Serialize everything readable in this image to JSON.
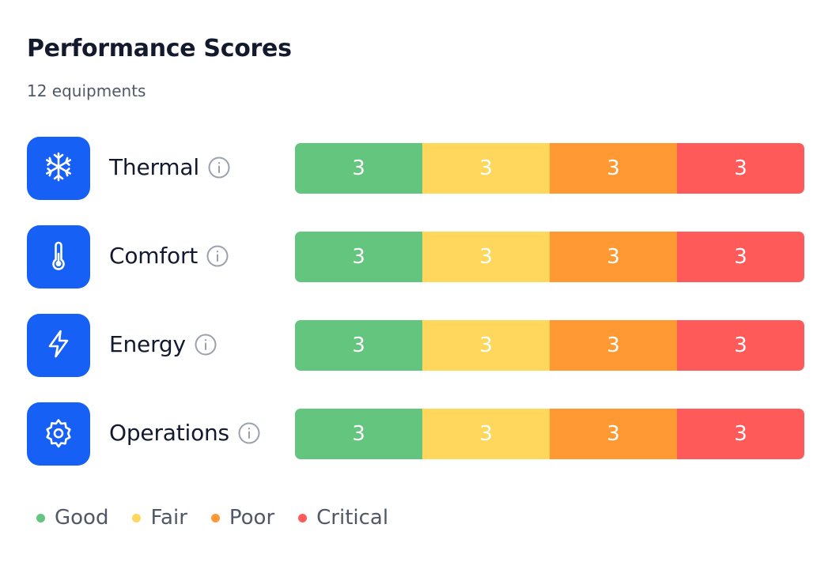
{
  "header": {
    "title": "Performance Scores",
    "subtitle": "12 equipments"
  },
  "colors": {
    "accent": "#1660f5",
    "good": "#63c57e",
    "fair": "#ffd75c",
    "poor": "#ff9934",
    "critical": "#ff5a5a"
  },
  "rows": [
    {
      "name": "Thermal",
      "icon": "snowflake-icon",
      "scores": {
        "good": "3",
        "fair": "3",
        "poor": "3",
        "critical": "3"
      }
    },
    {
      "name": "Comfort",
      "icon": "thermometer-icon",
      "scores": {
        "good": "3",
        "fair": "3",
        "poor": "3",
        "critical": "3"
      }
    },
    {
      "name": "Energy",
      "icon": "lightning-icon",
      "scores": {
        "good": "3",
        "fair": "3",
        "poor": "3",
        "critical": "3"
      }
    },
    {
      "name": "Operations",
      "icon": "gear-icon",
      "scores": {
        "good": "3",
        "fair": "3",
        "poor": "3",
        "critical": "3"
      }
    }
  ],
  "legend": {
    "good": "Good",
    "fair": "Fair",
    "poor": "Poor",
    "critical": "Critical"
  }
}
